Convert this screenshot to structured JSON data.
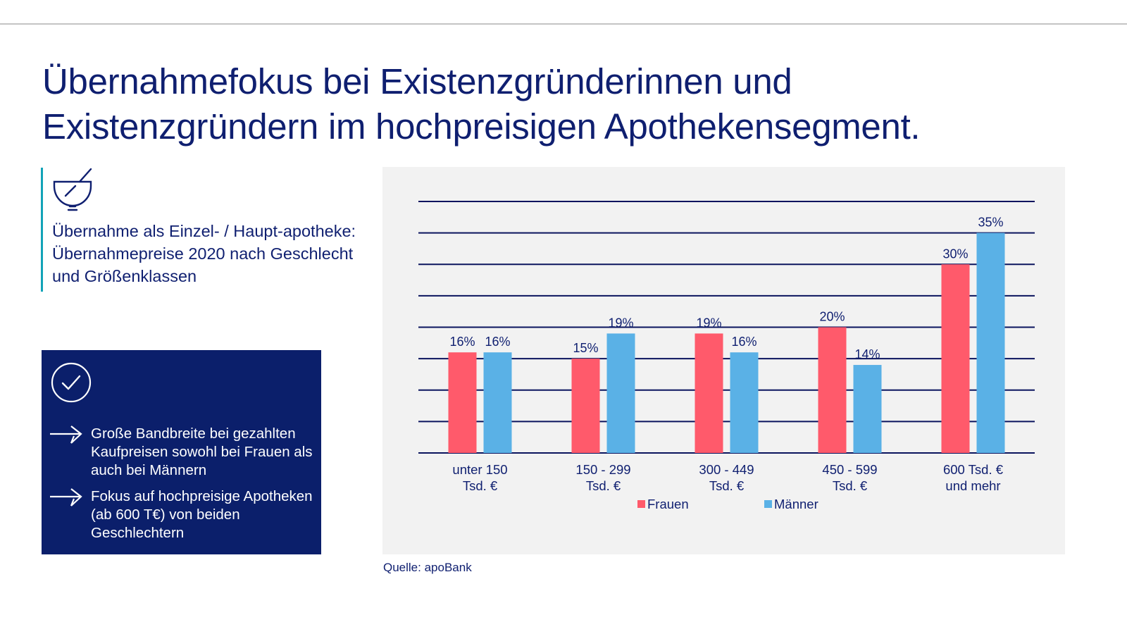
{
  "title": "Übernahmefokus bei Existenzgründerinnen und Existenzgründern im hochpreisigen Apothekensegment.",
  "info": {
    "icon": "mortar-pestle-icon",
    "text": "Übernahme als Einzel- / Haupt-apotheke: Übernahmepreise 2020 nach Geschlecht und Größenklassen",
    "accent_color": "#12a3b8"
  },
  "key_box": {
    "icon": "check-circle-icon",
    "bullet_icon": "arrow-right-icon",
    "bullets": [
      "Große Bandbreite bei gezahlten Kaufpreisen sowohl bei Frauen als auch bei Männern",
      "Fokus auf hochpreisige Apotheken (ab 600 T€) von beiden Geschlechtern"
    ],
    "background_color": "#0b1f6b"
  },
  "source": "Quelle: apoBank",
  "chart_data": {
    "type": "bar",
    "title": "",
    "xlabel": "",
    "ylabel": "",
    "ylim": [
      0,
      40
    ],
    "grid_step": 5,
    "grid": true,
    "categories": [
      [
        "unter 150",
        "Tsd. €"
      ],
      [
        "150 - 299",
        "Tsd. €"
      ],
      [
        "300 - 449",
        "Tsd. €"
      ],
      [
        "450 - 599",
        "Tsd. €"
      ],
      [
        "600 Tsd. €",
        "und mehr"
      ]
    ],
    "series": [
      {
        "name": "Frauen",
        "color": "#ff5a6b",
        "values": [
          16,
          15,
          19,
          20,
          30
        ]
      },
      {
        "name": "Männer",
        "color": "#5ab1e6",
        "values": [
          16,
          19,
          16,
          14,
          35
        ]
      }
    ],
    "value_suffix": "%",
    "legend": "bottom-center"
  }
}
